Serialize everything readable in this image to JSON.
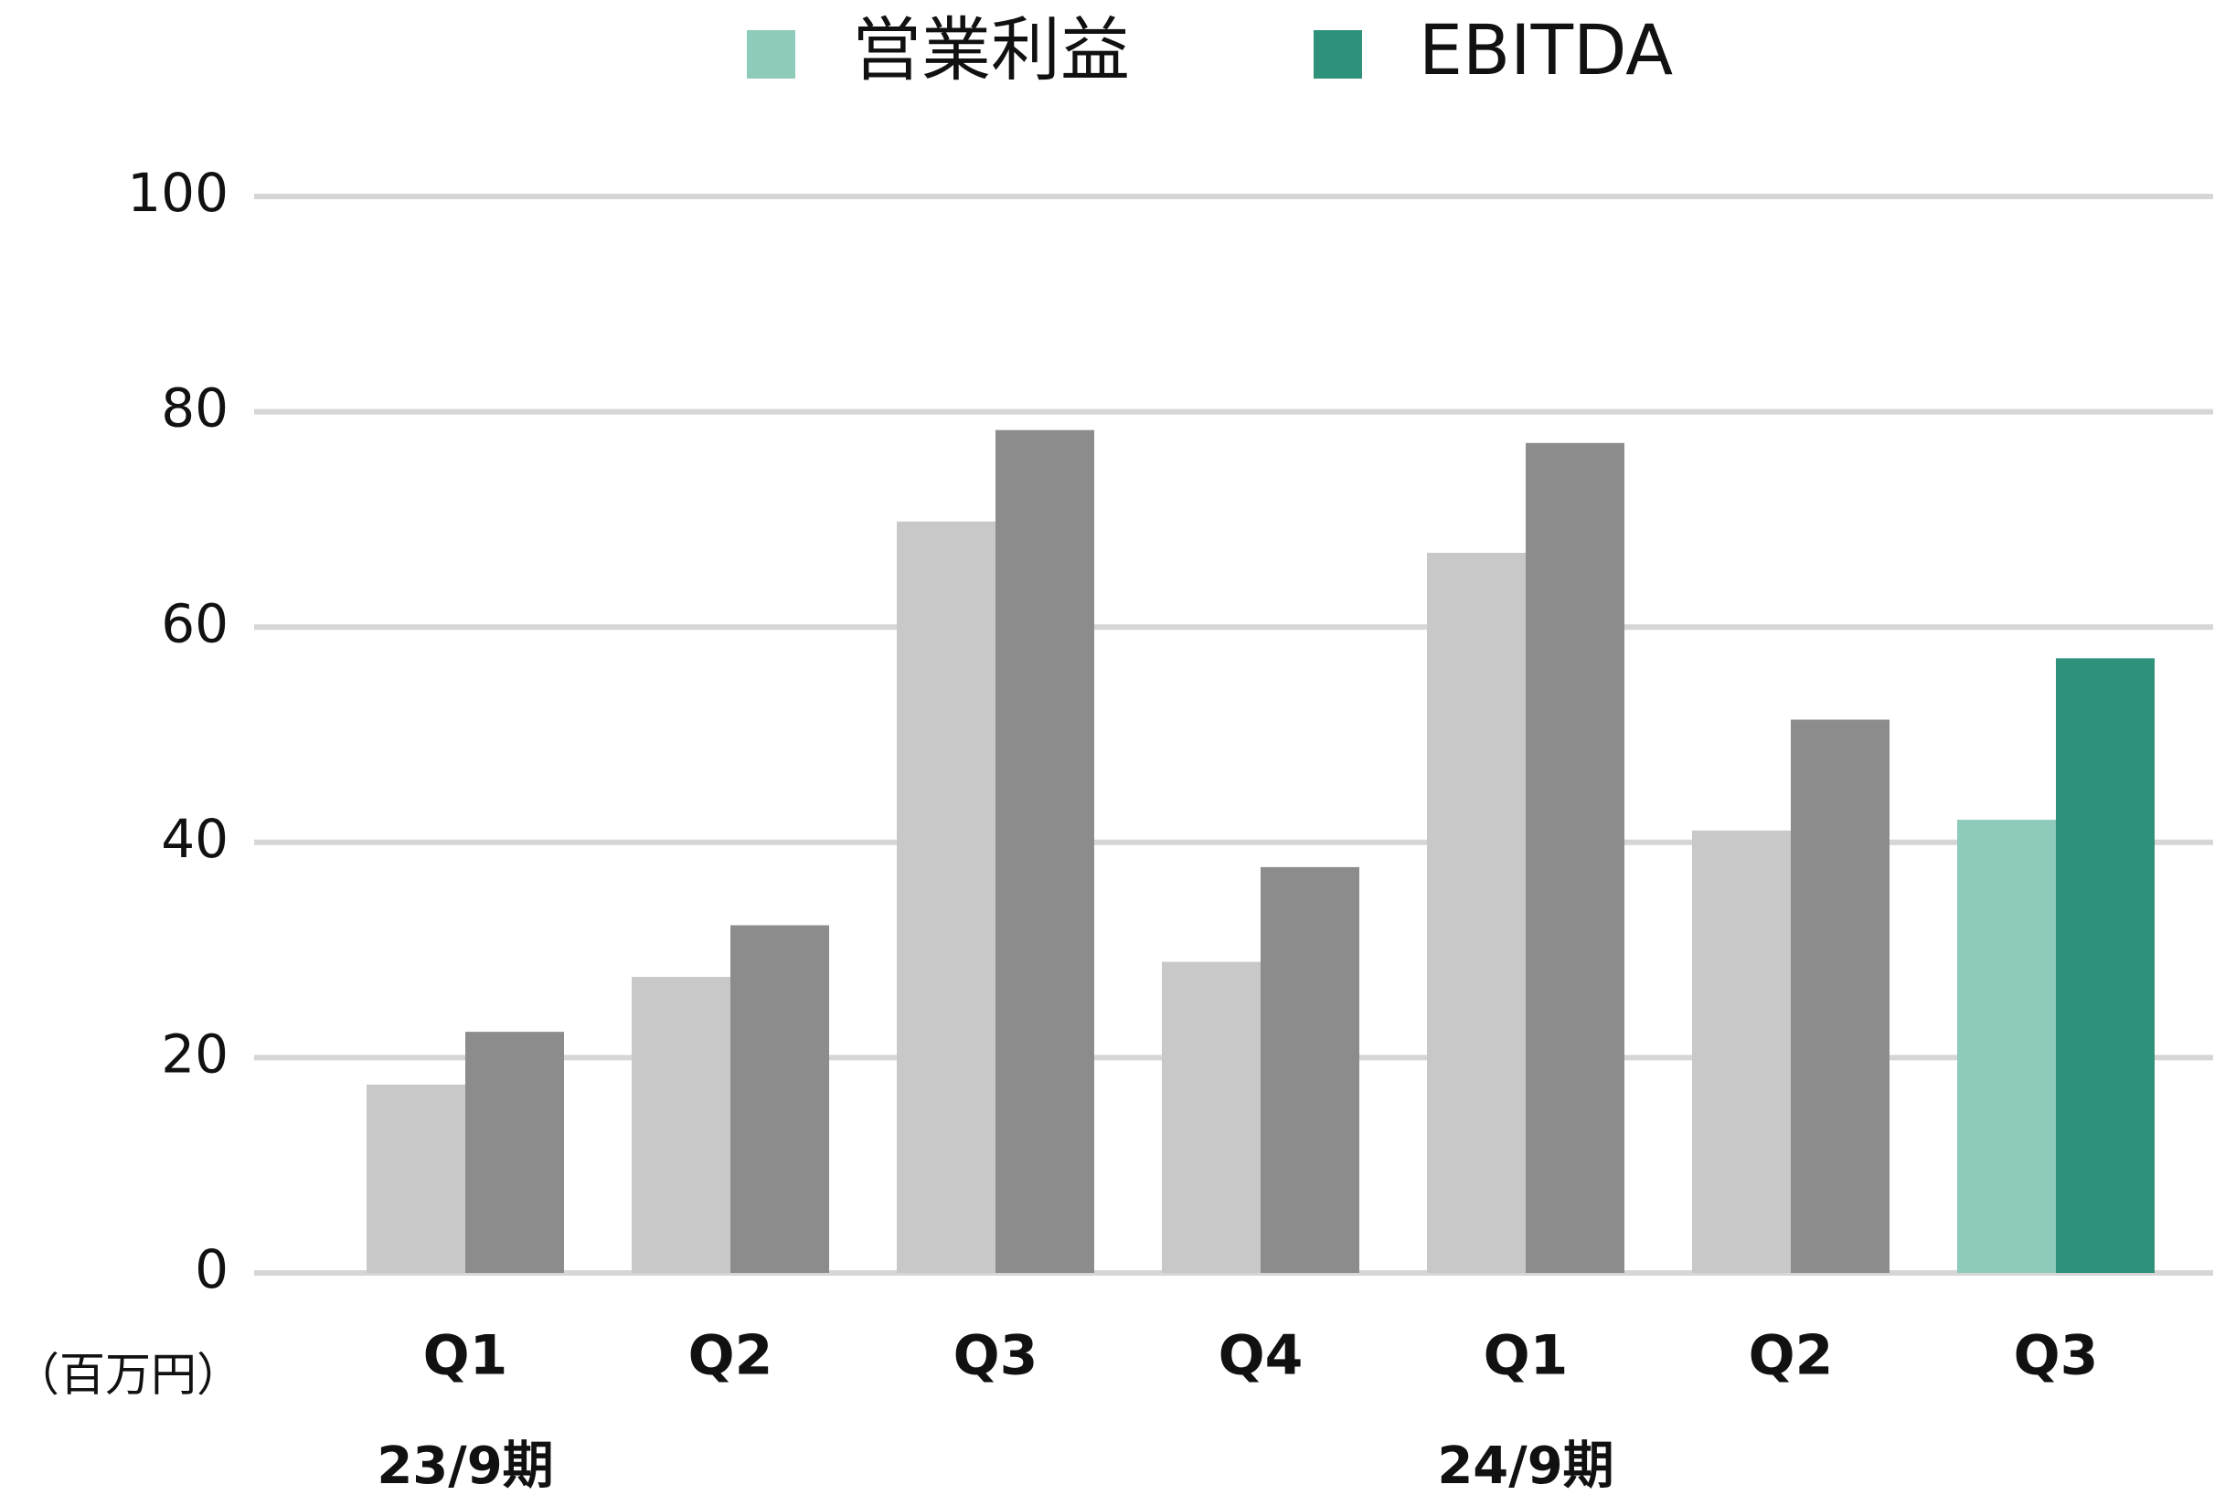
{
  "chart_data": {
    "type": "bar",
    "unit_label": "（百万円）",
    "categories": [
      "Q1",
      "Q2",
      "Q3",
      "Q4",
      "Q1",
      "Q2",
      "Q3"
    ],
    "groups": [
      {
        "label": "23/9期",
        "start": 0
      },
      {
        "label": "24/9期",
        "start": 4
      }
    ],
    "series": [
      {
        "name": "営業利益",
        "color": "#8fcbbb",
        "values": [
          17.5,
          27.5,
          69.8,
          28.9,
          66.9,
          41.1,
          42.1
        ],
        "bar_colors": [
          "#c8c8c8",
          "#c8c8c8",
          "#c8c8c8",
          "#c8c8c8",
          "#c8c8c8",
          "#c8c8c8",
          "#8fcbbb"
        ]
      },
      {
        "name": "EBITDA",
        "color": "#2e917a",
        "values": [
          22.4,
          32.3,
          78.3,
          37.7,
          77.1,
          51.4,
          57.1
        ],
        "bar_colors": [
          "#8c8c8c",
          "#8c8c8c",
          "#8c8c8c",
          "#8c8c8c",
          "#8c8c8c",
          "#8c8c8c",
          "#2e917a"
        ]
      }
    ],
    "ylim": [
      0,
      100
    ],
    "yticks": [
      0,
      20,
      40,
      60,
      80,
      100
    ],
    "grid": true,
    "legend": "top"
  }
}
